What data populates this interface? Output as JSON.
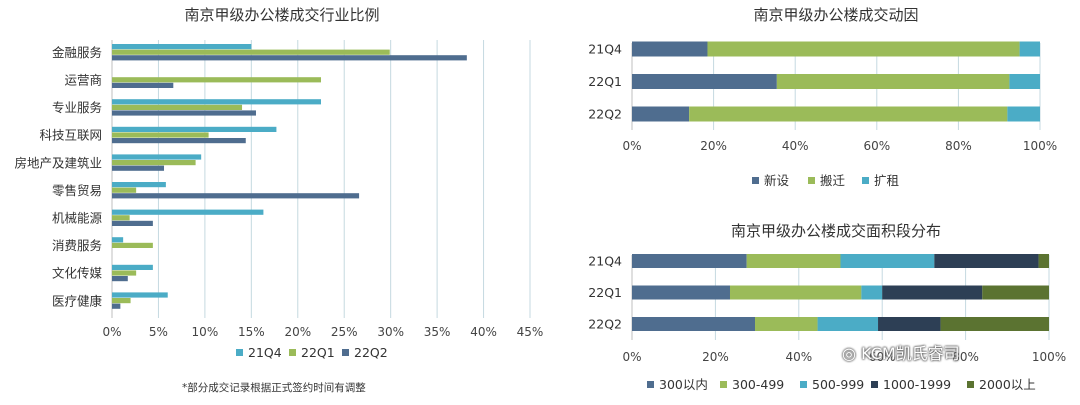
{
  "footnote": "*部分成交记录根据正式签约时间有调整",
  "watermark": "KCM凯氏睿司",
  "colors": {
    "s1": "#4bacc6",
    "s2": "#9bbb59",
    "s3": "#4f6d8f",
    "grid": "#c5d9e0"
  },
  "chart_data": [
    {
      "type": "bar",
      "orientation": "horizontal",
      "title": "南京甲级办公楼成交行业比例",
      "categories": [
        "金融服务",
        "运营商",
        "专业服务",
        "科技互联网",
        "房地产及建筑业",
        "零售贸易",
        "机械能源",
        "消费服务",
        "文化传媒",
        "医疗健康"
      ],
      "series": [
        {
          "name": "21Q4",
          "values": [
            15,
            0,
            22.5,
            17.7,
            9.6,
            5.8,
            16.3,
            1.2,
            4.4,
            6.0
          ]
        },
        {
          "name": "22Q1",
          "values": [
            29.9,
            22.5,
            14.0,
            10.4,
            9.0,
            2.6,
            1.9,
            4.4,
            2.6,
            2.0
          ]
        },
        {
          "name": "22Q2",
          "values": [
            38.2,
            6.6,
            15.5,
            14.4,
            5.6,
            26.6,
            4.4,
            0,
            1.7,
            0.9
          ]
        }
      ],
      "xlim": [
        0,
        45
      ],
      "xticks": [
        "0%",
        "5%",
        "10%",
        "15%",
        "20%",
        "25%",
        "30%",
        "35%",
        "40%",
        "45%"
      ],
      "grid": true,
      "legend": "bottom"
    },
    {
      "type": "bar",
      "orientation": "horizontal",
      "stacked": true,
      "title": "南京甲级办公楼成交动因",
      "categories": [
        "21Q4",
        "22Q1",
        "22Q2"
      ],
      "series": [
        {
          "name": "新设",
          "values": [
            18.5,
            35.5,
            14.0
          ]
        },
        {
          "name": "搬迁",
          "values": [
            76.5,
            57.0,
            78.0
          ]
        },
        {
          "name": "扩租",
          "values": [
            5.0,
            7.5,
            8.0
          ]
        }
      ],
      "xlim": [
        0,
        100
      ],
      "xticks": [
        "0%",
        "20%",
        "40%",
        "60%",
        "80%",
        "100%"
      ],
      "grid": true,
      "legend": "bottom"
    },
    {
      "type": "bar",
      "orientation": "horizontal",
      "stacked": true,
      "title": "南京甲级办公楼成交面积段分布",
      "categories": [
        "21Q4",
        "22Q1",
        "22Q2"
      ],
      "series": [
        {
          "name": "300以内",
          "values": [
            27.5,
            23.5,
            29.5
          ]
        },
        {
          "name": "300-499",
          "values": [
            22.5,
            31.5,
            15.0
          ]
        },
        {
          "name": "500-999",
          "values": [
            22.5,
            5.0,
            14.5
          ]
        },
        {
          "name": "1000-1999",
          "values": [
            25.0,
            24.0,
            15.0
          ]
        },
        {
          "name": "2000以上",
          "values": [
            2.5,
            16.0,
            26.0
          ]
        }
      ],
      "xlim": [
        0,
        100
      ],
      "xticks": [
        "0%",
        "20%",
        "40%",
        "60%",
        "80%",
        "100%"
      ],
      "grid": true,
      "legend": "bottom"
    }
  ]
}
